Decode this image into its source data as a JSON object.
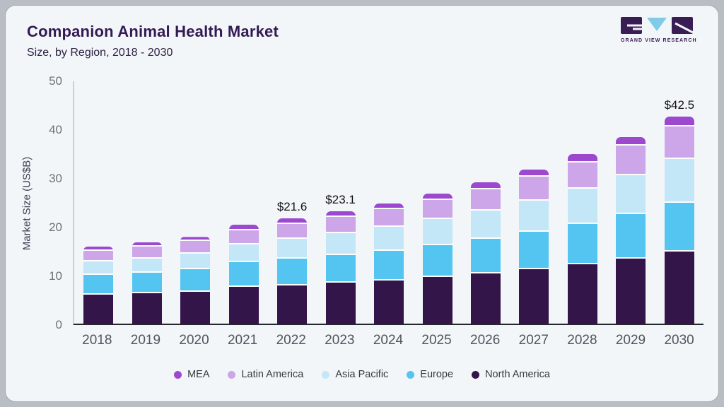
{
  "header": {
    "title": "Companion Animal Health Market",
    "subtitle": "Size, by Region, 2018 - 2030",
    "brand": "GRAND VIEW RESEARCH"
  },
  "colors": {
    "outer_background": "#b8bec4",
    "card_background": "#f2f6f9",
    "title_text": "#321a52",
    "axis_line_x": "#26262e",
    "axis_line_y": "#c9cfd6",
    "brand_purple": "#3a1d55",
    "brand_cyan": "#7fcbe8"
  },
  "chart_data": {
    "type": "bar",
    "stacked": true,
    "title": "Companion Animal Health Market",
    "subtitle": "Size, by Region, 2018 - 2030",
    "xlabel": "",
    "ylabel": "Market Size (US$B)",
    "ylim": [
      0,
      50
    ],
    "yticks": [
      0,
      10,
      20,
      30,
      40,
      50
    ],
    "grid": false,
    "legend_position": "bottom",
    "categories": [
      2018,
      2019,
      2020,
      2021,
      2022,
      2023,
      2024,
      2025,
      2026,
      2027,
      2028,
      2029,
      2030
    ],
    "series": [
      {
        "name": "MEA",
        "color": "#9c49cf",
        "values": [
          0.9,
          0.9,
          0.9,
          1.1,
          1.1,
          1.2,
          1.2,
          1.3,
          1.4,
          1.5,
          1.7,
          1.8,
          2.0
        ]
      },
      {
        "name": "Latin America",
        "color": "#cda5e9",
        "values": [
          2.2,
          2.4,
          2.6,
          2.9,
          3.1,
          3.4,
          3.7,
          4.0,
          4.4,
          4.9,
          5.4,
          6.0,
          6.7
        ]
      },
      {
        "name": "Asia Pacific",
        "color": "#c4e7f8",
        "values": [
          2.7,
          2.9,
          3.2,
          3.7,
          4.1,
          4.4,
          4.8,
          5.3,
          5.8,
          6.4,
          7.2,
          8.0,
          9.0
        ]
      },
      {
        "name": "Europe",
        "color": "#54c5f0",
        "values": [
          4.1,
          4.3,
          4.5,
          5.1,
          5.4,
          5.7,
          6.1,
          6.5,
          7.1,
          7.6,
          8.3,
          9.1,
          10.0
        ]
      },
      {
        "name": "North America",
        "color": "#331549",
        "values": [
          5.9,
          6.2,
          6.6,
          7.5,
          7.9,
          8.4,
          8.9,
          9.6,
          10.3,
          11.2,
          12.2,
          13.4,
          14.8
        ]
      }
    ],
    "stack_order_bottom_to_top": [
      "North America",
      "Europe",
      "Asia Pacific",
      "Latin America",
      "MEA"
    ],
    "totals": [
      15.8,
      16.7,
      17.8,
      20.3,
      21.6,
      23.1,
      24.7,
      26.7,
      29.0,
      31.6,
      34.8,
      38.3,
      42.5
    ],
    "annotations": [
      {
        "category": 2022,
        "label": "$21.6"
      },
      {
        "category": 2023,
        "label": "$23.1"
      },
      {
        "category": 2030,
        "label": "$42.5"
      }
    ]
  }
}
